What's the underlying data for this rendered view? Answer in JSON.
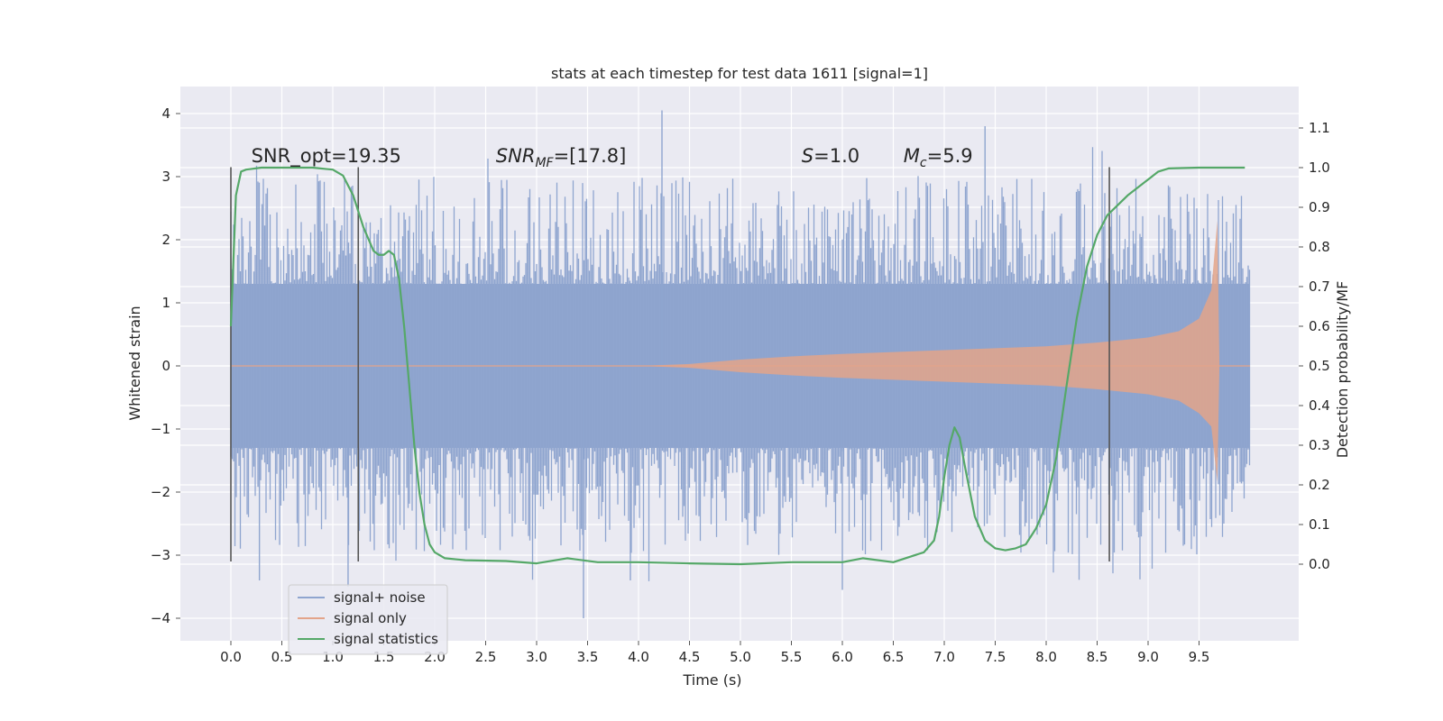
{
  "chart_data": {
    "type": "line",
    "title": "stats at each timestep for test data 1611 [signal=1]",
    "xlabel": "Time (s)",
    "ylabel": "Whitened strain",
    "ylabel_right": "Detection probability/MF",
    "xlim": [
      -0.5,
      10.5
    ],
    "ylim": [
      -4.4,
      4.4
    ],
    "ylim_right": [
      -0.2,
      1.2
    ],
    "x_ticks": [
      0.0,
      0.5,
      1.0,
      1.5,
      2.0,
      2.5,
      3.0,
      3.5,
      4.0,
      4.5,
      5.0,
      5.5,
      6.0,
      6.5,
      7.0,
      7.5,
      8.0,
      8.5,
      9.0,
      9.5
    ],
    "x_tick_labels": [
      "0.0",
      "0.5",
      "1.0",
      "1.5",
      "2.0",
      "2.5",
      "3.0",
      "3.5",
      "4.0",
      "4.5",
      "5.0",
      "5.5",
      "6.0",
      "6.5",
      "7.0",
      "7.5",
      "8.0",
      "8.5",
      "9.0",
      "9.5"
    ],
    "y_ticks": [
      -4,
      -3,
      -2,
      -1,
      0,
      1,
      2,
      3,
      4
    ],
    "y_tick_labels": [
      "−4",
      "−3",
      "−2",
      "−1",
      "0",
      "1",
      "2",
      "3",
      "4"
    ],
    "y_right_ticks": [
      0.0,
      0.1,
      0.2,
      0.3,
      0.4,
      0.5,
      0.6,
      0.7,
      0.8,
      0.9,
      1.0,
      1.1
    ],
    "y_right_tick_labels": [
      "0.0",
      "0.1",
      "0.2",
      "0.3",
      "0.4",
      "0.5",
      "0.6",
      "0.7",
      "0.8",
      "0.9",
      "1.0",
      "1.1"
    ],
    "grid": true,
    "legend_position": "lower-left",
    "annotations": [
      {
        "id": "snr-opt",
        "text": "SNR_opt=19.35",
        "x": 0.2,
        "y": 3.2
      },
      {
        "id": "snr-mf",
        "text": "SNR",
        "sub": "MF",
        "suffix": "=[17.8]",
        "italic": true,
        "x": 2.6,
        "y": 3.2
      },
      {
        "id": "s",
        "text": "S",
        "suffix": "=1.0",
        "italic": true,
        "x": 5.6,
        "y": 3.2
      },
      {
        "id": "mc",
        "text": "M",
        "sub": "c",
        "suffix": "=5.9",
        "italic": true,
        "x": 6.6,
        "y": 3.2
      }
    ],
    "vertical_lines": [
      0.0,
      1.25,
      8.62
    ],
    "vertical_line_range": [
      -3.1,
      3.15
    ],
    "series": [
      {
        "name": "signal+ noise",
        "color": "#8fa5cf",
        "style": "noise",
        "x_range": [
          0.0,
          10.0
        ],
        "amplitude_band": [
          -1.3,
          1.3
        ],
        "spike_range": [
          -4.0,
          4.0
        ]
      },
      {
        "name": "signal only",
        "color": "#e3a48a",
        "style": "chirp",
        "x": [
          0.0,
          4.0,
          4.5,
          5.0,
          5.5,
          6.0,
          6.5,
          7.0,
          7.5,
          8.0,
          8.5,
          9.0,
          9.3,
          9.5,
          9.62,
          9.68,
          9.7,
          10.0
        ],
        "envelope": [
          0.0,
          0.0,
          0.03,
          0.1,
          0.15,
          0.19,
          0.22,
          0.25,
          0.28,
          0.31,
          0.37,
          0.45,
          0.55,
          0.75,
          1.2,
          2.3,
          0.0,
          0.0
        ]
      },
      {
        "name": "signal statistics",
        "color": "#55a868",
        "axis": "right",
        "x": [
          0.0,
          0.05,
          0.1,
          0.15,
          0.3,
          0.5,
          0.8,
          1.0,
          1.1,
          1.2,
          1.3,
          1.4,
          1.45,
          1.5,
          1.55,
          1.6,
          1.65,
          1.7,
          1.75,
          1.8,
          1.85,
          1.9,
          1.95,
          2.0,
          2.1,
          2.3,
          2.7,
          3.0,
          3.3,
          3.6,
          4.0,
          4.5,
          5.0,
          5.5,
          6.0,
          6.2,
          6.5,
          6.8,
          6.9,
          6.95,
          7.0,
          7.05,
          7.1,
          7.15,
          7.2,
          7.3,
          7.4,
          7.5,
          7.6,
          7.7,
          7.8,
          7.9,
          8.0,
          8.1,
          8.2,
          8.3,
          8.4,
          8.5,
          8.6,
          8.8,
          9.0,
          9.1,
          9.2,
          9.5,
          9.95
        ],
        "values": [
          0.6,
          0.93,
          0.99,
          0.995,
          1.0,
          1.0,
          1.0,
          0.995,
          0.98,
          0.93,
          0.85,
          0.79,
          0.78,
          0.78,
          0.79,
          0.78,
          0.72,
          0.6,
          0.45,
          0.3,
          0.18,
          0.1,
          0.05,
          0.03,
          0.015,
          0.01,
          0.008,
          0.002,
          0.015,
          0.005,
          0.005,
          0.002,
          0.0,
          0.005,
          0.005,
          0.015,
          0.005,
          0.03,
          0.06,
          0.12,
          0.22,
          0.3,
          0.345,
          0.32,
          0.25,
          0.12,
          0.06,
          0.04,
          0.035,
          0.04,
          0.05,
          0.09,
          0.15,
          0.27,
          0.45,
          0.62,
          0.75,
          0.83,
          0.88,
          0.93,
          0.97,
          0.99,
          0.998,
          1.0,
          1.0
        ]
      }
    ]
  }
}
